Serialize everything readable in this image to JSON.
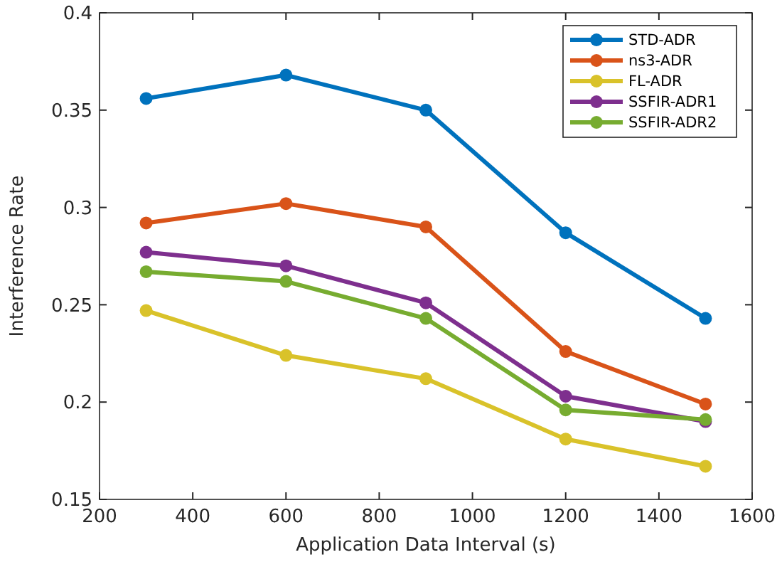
{
  "chart_data": {
    "type": "line",
    "xlabel": "Application Data Interval (s)",
    "ylabel": "Interference Rate",
    "x": [
      300,
      600,
      900,
      1200,
      1500
    ],
    "series": [
      {
        "name": "STD-ADR",
        "color": "#0072bd",
        "values": [
          0.356,
          0.368,
          0.35,
          0.287,
          0.243
        ]
      },
      {
        "name": "ns3-ADR",
        "color": "#d95319",
        "values": [
          0.292,
          0.302,
          0.29,
          0.226,
          0.199
        ]
      },
      {
        "name": "FL-ADR",
        "color": "#d9c22a",
        "values": [
          0.247,
          0.224,
          0.212,
          0.181,
          0.167
        ]
      },
      {
        "name": "SSFIR-ADR1",
        "color": "#7e2f8e",
        "values": [
          0.277,
          0.27,
          0.251,
          0.203,
          0.19
        ]
      },
      {
        "name": "SSFIR-ADR2",
        "color": "#77ac30",
        "values": [
          0.267,
          0.262,
          0.243,
          0.196,
          0.191
        ]
      }
    ],
    "xlim": [
      200,
      1600
    ],
    "xticks": [
      200,
      400,
      600,
      800,
      1000,
      1200,
      1400,
      1600
    ],
    "ylim": [
      0.15,
      0.4
    ],
    "yticks": [
      0.15,
      0.2,
      0.25,
      0.3,
      0.35,
      0.4
    ],
    "grid": false,
    "legend": "top right",
    "marker": "circle",
    "line_style": "solid"
  }
}
